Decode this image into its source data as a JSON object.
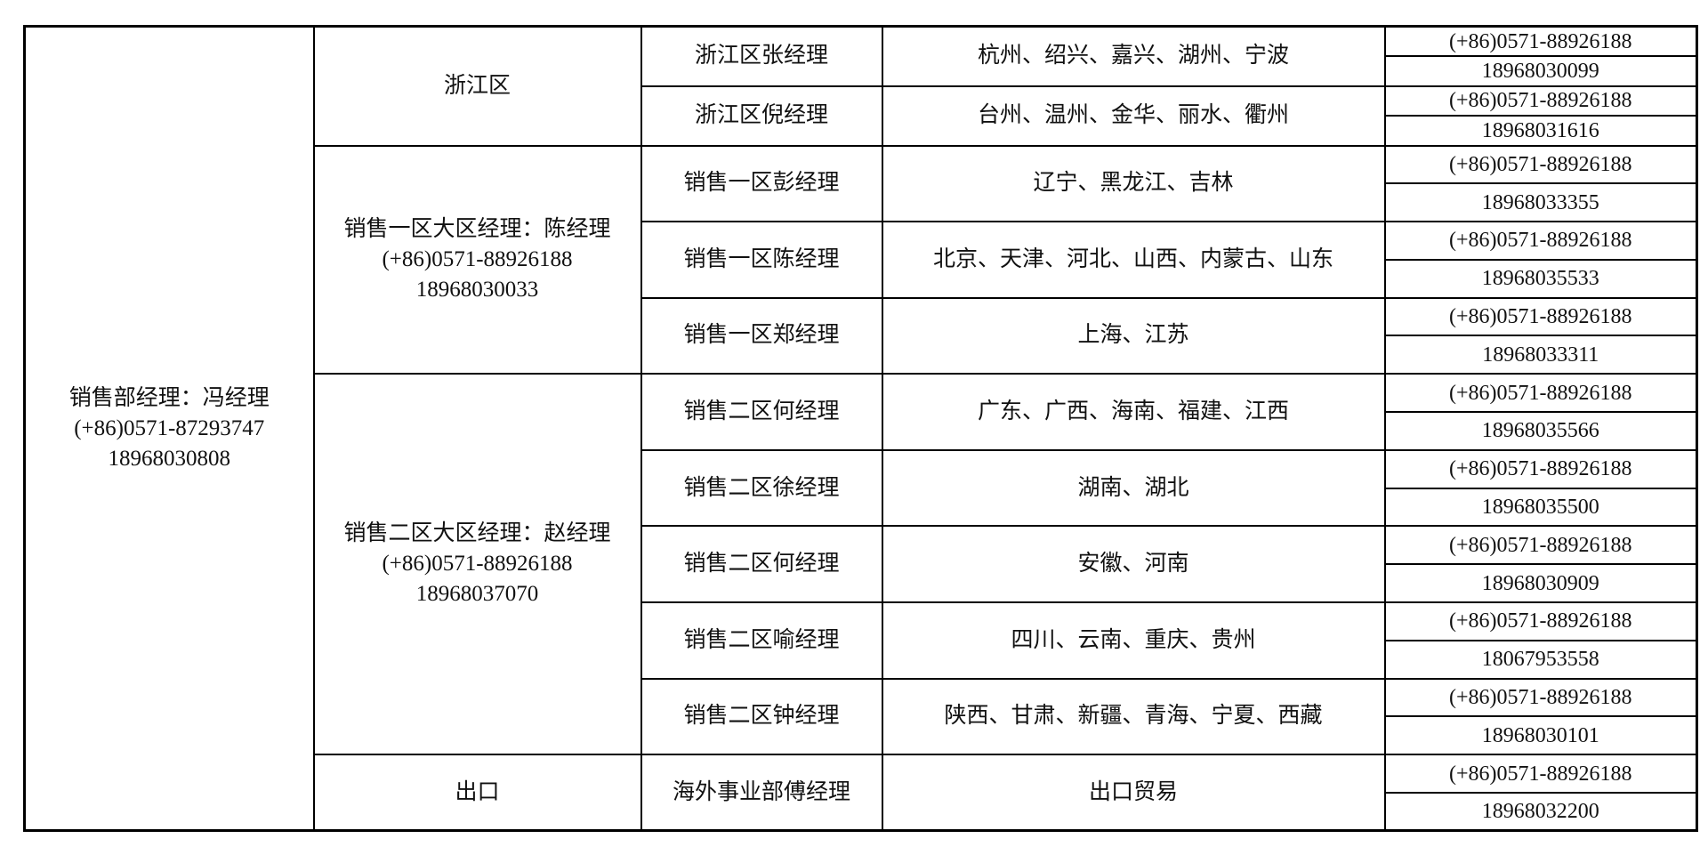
{
  "department": {
    "title": "销售部经理：冯经理",
    "phone": "(+86)0571-87293747",
    "mobile": "18968030808"
  },
  "regions": [
    {
      "name": "浙江区",
      "manager_line": "",
      "phone": "",
      "mobile": "",
      "managers": [
        {
          "name": "浙江区张经理",
          "areas": "杭州、绍兴、嘉兴、湖州、宁波",
          "phone": "(+86)0571-88926188",
          "mobile": "18968030099"
        },
        {
          "name": "浙江区倪经理",
          "areas": "台州、温州、金华、丽水、衢州",
          "phone": "(+86)0571-88926188",
          "mobile": "18968031616"
        }
      ]
    },
    {
      "name": "销售一区大区经理：陈经理",
      "phone": "(+86)0571-88926188",
      "mobile": "18968030033",
      "managers": [
        {
          "name": "销售一区彭经理",
          "areas": "辽宁、黑龙江、吉林",
          "phone": "(+86)0571-88926188",
          "mobile": "18968033355"
        },
        {
          "name": "销售一区陈经理",
          "areas": "北京、天津、河北、山西、内蒙古、山东",
          "phone": "(+86)0571-88926188",
          "mobile": "18968035533"
        },
        {
          "name": "销售一区郑经理",
          "areas": "上海、江苏",
          "phone": "(+86)0571-88926188",
          "mobile": "18968033311"
        }
      ]
    },
    {
      "name": "销售二区大区经理：赵经理",
      "phone": "(+86)0571-88926188",
      "mobile": "18968037070",
      "managers": [
        {
          "name": "销售二区何经理",
          "areas": "广东、广西、海南、福建、江西",
          "phone": "(+86)0571-88926188",
          "mobile": "18968035566"
        },
        {
          "name": "销售二区徐经理",
          "areas": "湖南、湖北",
          "phone": "(+86)0571-88926188",
          "mobile": "18968035500"
        },
        {
          "name": "销售二区何经理",
          "areas": "安徽、河南",
          "phone": "(+86)0571-88926188",
          "mobile": "18968030909"
        },
        {
          "name": "销售二区喻经理",
          "areas": "四川、云南、重庆、贵州",
          "phone": "(+86)0571-88926188",
          "mobile": "18067953558"
        },
        {
          "name": "销售二区钟经理",
          "areas": "陕西、甘肃、新疆、青海、宁夏、西藏",
          "phone": "(+86)0571-88926188",
          "mobile": "18968030101"
        }
      ]
    },
    {
      "name": "出口",
      "phone": "",
      "mobile": "",
      "managers": [
        {
          "name": "海外事业部傅经理",
          "areas": "出口贸易",
          "phone": "(+86)0571-88926188",
          "mobile": "18968032200"
        }
      ]
    }
  ]
}
